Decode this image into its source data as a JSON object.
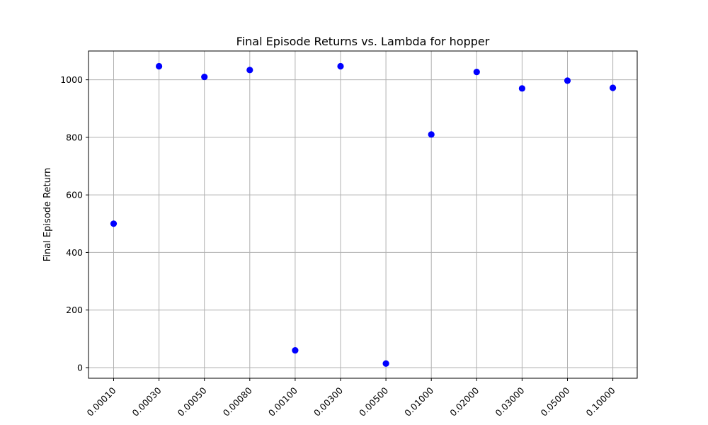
{
  "chart_data": {
    "type": "scatter",
    "title": "Final Episode Returns vs. Lambda for hopper",
    "xlabel": "",
    "ylabel": "Final Episode Return",
    "categories": [
      "0.00010",
      "0.00030",
      "0.00050",
      "0.00080",
      "0.00100",
      "0.00300",
      "0.00500",
      "0.01000",
      "0.02000",
      "0.03000",
      "0.05000",
      "0.10000"
    ],
    "values": [
      500,
      1047,
      1010,
      1034,
      60,
      1047,
      14,
      810,
      1027,
      970,
      997,
      972
    ],
    "yticks": [
      "0",
      "200",
      "400",
      "600",
      "800",
      "1000"
    ],
    "ylim": [
      -37,
      1100
    ],
    "grid": true,
    "marker_color": "#0000ff"
  }
}
